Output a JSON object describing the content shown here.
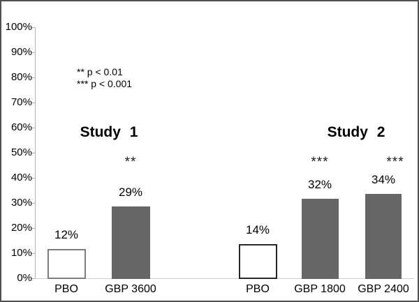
{
  "chart_data": {
    "type": "bar",
    "title": "",
    "xlabel": "",
    "ylabel": "",
    "ylim": [
      0,
      100
    ],
    "grid": false,
    "y_tick_labels": [
      "0%",
      "10%",
      "20%",
      "30%",
      "40%",
      "50%",
      "60%",
      "70%",
      "80%",
      "90%",
      "100%"
    ],
    "groups": [
      {
        "title": "Study 1",
        "bars": [
          {
            "category": "PBO",
            "value": 12,
            "value_label": "12%",
            "significance": "",
            "style": "outline-gray"
          },
          {
            "category": "GBP 3600",
            "value": 29,
            "value_label": "29%",
            "significance": "**",
            "style": "solid-gray"
          }
        ]
      },
      {
        "title": "Study 2",
        "bars": [
          {
            "category": "PBO",
            "value": 14,
            "value_label": "14%",
            "significance": "",
            "style": "outline-black"
          },
          {
            "category": "GBP 1800",
            "value": 32,
            "value_label": "32%",
            "significance": "***",
            "style": "solid-gray"
          },
          {
            "category": "GBP 2400",
            "value": 34,
            "value_label": "34%",
            "significance": "***",
            "style": "solid-gray"
          }
        ]
      }
    ],
    "annotations": {
      "legend_line_1": "** p < 0.01",
      "legend_line_2": "*** p < 0.001"
    },
    "colors": {
      "bar_fill": "#666666",
      "outline_gray_border": "#7d7d7d",
      "outline_black_border": "#262626",
      "axis_line": "#b3b3b3",
      "baseline": "#cccccc",
      "text": "#000000",
      "frame_border": "#505050"
    }
  }
}
